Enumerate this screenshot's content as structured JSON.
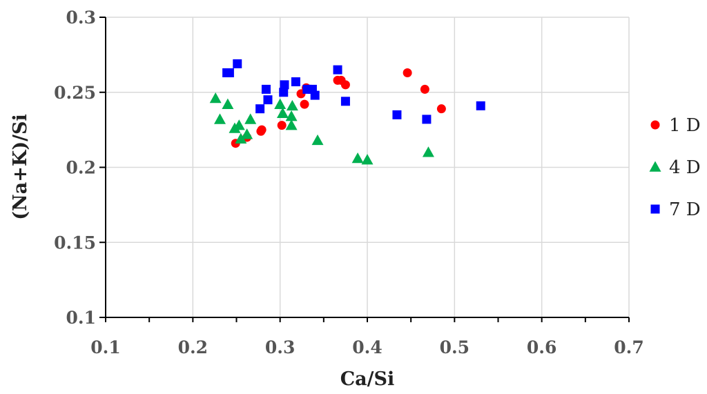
{
  "chart_data": {
    "type": "scatter",
    "title": "",
    "xlabel": "Ca/Si",
    "ylabel": "(Na+K)/Si",
    "xlim": [
      0.1,
      0.7
    ],
    "ylim": [
      0.1,
      0.3
    ],
    "x_ticks": [
      "0.1",
      "0.2",
      "0.3",
      "0.4",
      "0.5",
      "0.6",
      "0.7"
    ],
    "y_ticks": [
      "0.1",
      "0.15",
      "0.2",
      "0.25",
      "0.3"
    ],
    "grid": true,
    "legend_position": "right",
    "series": [
      {
        "name": "1 D",
        "marker": "circle",
        "color": "#ff0000",
        "points": [
          [
            0.249,
            0.216
          ],
          [
            0.262,
            0.22
          ],
          [
            0.278,
            0.224
          ],
          [
            0.279,
            0.225
          ],
          [
            0.302,
            0.228
          ],
          [
            0.324,
            0.249
          ],
          [
            0.328,
            0.242
          ],
          [
            0.33,
            0.253
          ],
          [
            0.366,
            0.258
          ],
          [
            0.37,
            0.258
          ],
          [
            0.375,
            0.255
          ],
          [
            0.446,
            0.263
          ],
          [
            0.466,
            0.252
          ],
          [
            0.485,
            0.239
          ]
        ]
      },
      {
        "name": "4 D",
        "marker": "triangle",
        "color": "#00b050",
        "points": [
          [
            0.226,
            0.246
          ],
          [
            0.231,
            0.232
          ],
          [
            0.24,
            0.242
          ],
          [
            0.248,
            0.226
          ],
          [
            0.253,
            0.228
          ],
          [
            0.255,
            0.219
          ],
          [
            0.262,
            0.222
          ],
          [
            0.266,
            0.232
          ],
          [
            0.3,
            0.242
          ],
          [
            0.303,
            0.236
          ],
          [
            0.313,
            0.234
          ],
          [
            0.314,
            0.241
          ],
          [
            0.313,
            0.228
          ],
          [
            0.343,
            0.218
          ],
          [
            0.389,
            0.206
          ],
          [
            0.4,
            0.205
          ],
          [
            0.47,
            0.21
          ]
        ]
      },
      {
        "name": "7 D",
        "marker": "square",
        "color": "#0000ff",
        "points": [
          [
            0.239,
            0.263
          ],
          [
            0.242,
            0.263
          ],
          [
            0.251,
            0.269
          ],
          [
            0.277,
            0.239
          ],
          [
            0.284,
            0.252
          ],
          [
            0.286,
            0.245
          ],
          [
            0.304,
            0.25
          ],
          [
            0.305,
            0.255
          ],
          [
            0.318,
            0.257
          ],
          [
            0.331,
            0.252
          ],
          [
            0.337,
            0.252
          ],
          [
            0.34,
            0.248
          ],
          [
            0.366,
            0.265
          ],
          [
            0.375,
            0.244
          ],
          [
            0.434,
            0.235
          ],
          [
            0.468,
            0.232
          ],
          [
            0.53,
            0.241
          ]
        ]
      }
    ]
  }
}
